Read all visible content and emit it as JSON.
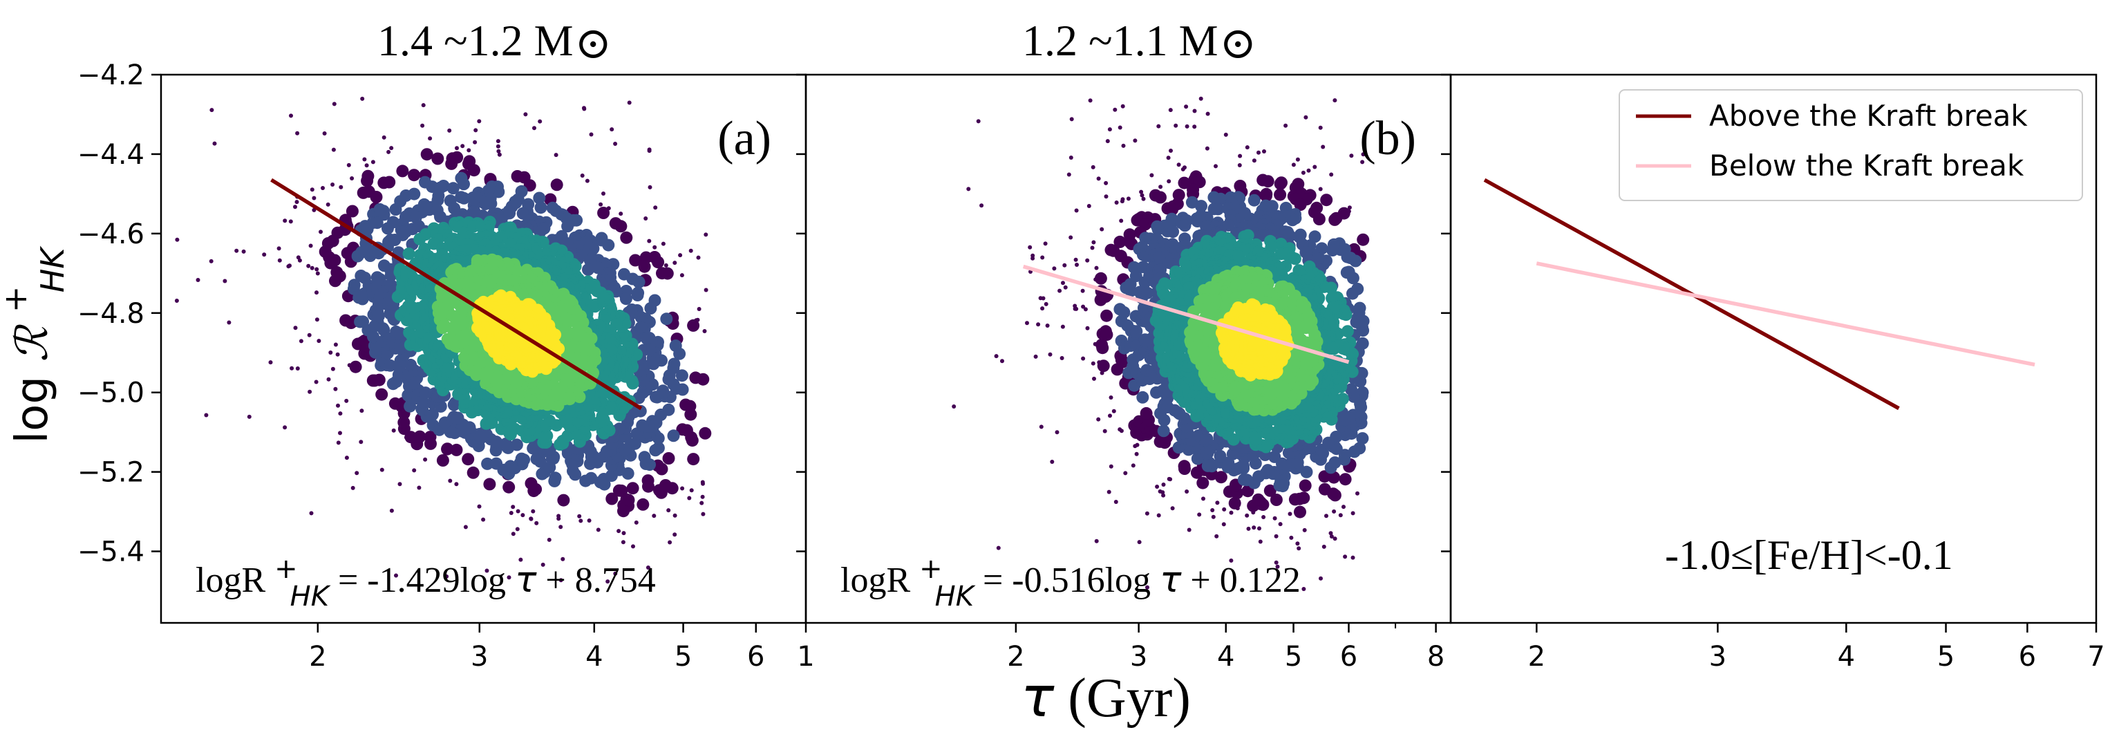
{
  "figure": {
    "xlabel_symbol": "τ",
    "xlabel_unit": "(Gyr)",
    "ylabel_prefix": "log ",
    "ylabel_symbol": "ℛ",
    "ylabel_sup": "+",
    "ylabel_sub": "HK"
  },
  "colors": {
    "above": "#800000",
    "below": "#ffc0cb",
    "cloud": [
      "#440154",
      "#3b528b",
      "#21918c",
      "#5ec962",
      "#fde725"
    ]
  },
  "chart_data": [
    {
      "type": "scatter",
      "title": "1.4 ~1.2 M",
      "title_symbol": "⊙",
      "panel_label": "(a)",
      "x_scale": "log",
      "xlim": [
        1.35,
        6.8
      ],
      "ylim": [
        -5.58,
        -4.2
      ],
      "x_ticks": [
        2,
        3,
        4,
        5,
        6
      ],
      "x_minor": [],
      "y_ticks": [
        -5.4,
        -5.2,
        -5.0,
        -4.8,
        -4.6,
        -4.4,
        -4.2
      ],
      "y_tick_labels": [
        "−5.4",
        "−5.2",
        "−5.0",
        "−4.8",
        "−4.6",
        "−4.4",
        "−4.2"
      ],
      "show_y_labels": true,
      "cloud": {
        "x_center": 3.3,
        "y_center": -4.85,
        "x_min": 1.4,
        "x_max": 5.3,
        "y_min": -5.5,
        "y_max": -4.26,
        "slope": -1.429
      },
      "fit": {
        "slope": -1.429,
        "intercept": 8.754,
        "x_range": [
          1.78,
          4.5
        ],
        "series": "above"
      },
      "equation": {
        "prefix": "logR",
        "sup": "+",
        "sub": "HK",
        "body": " = -1.429log",
        "tau": "τ",
        "tail": " + 8.754"
      }
    },
    {
      "type": "scatter",
      "title": "1.2 ~1.1 M",
      "title_symbol": "⊙",
      "panel_label": "(b)",
      "x_scale": "log",
      "xlim": [
        1,
        8.4
      ],
      "ylim": [
        -5.58,
        -4.2
      ],
      "x_ticks": [
        1,
        2,
        3,
        4,
        5,
        6,
        8
      ],
      "x_minor": [
        7
      ],
      "y_ticks": [
        -5.4,
        -5.2,
        -5.0,
        -4.8,
        -4.6,
        -4.4,
        -4.2
      ],
      "y_tick_labels": [
        "",
        "",
        "",
        "",
        "",
        "",
        ""
      ],
      "show_y_labels": false,
      "cloud": {
        "x_center": 4.4,
        "y_center": -4.87,
        "x_min": 1.5,
        "x_max": 6.3,
        "y_min": -5.5,
        "y_max": -4.26,
        "slope": -0.516
      },
      "fit": {
        "slope": -0.516,
        "intercept": 0.122,
        "x_range": [
          2.05,
          6.0
        ],
        "series": "below"
      },
      "equation": {
        "prefix": "logR",
        "sup": "+",
        "sub": "HK",
        "body": " = -0.516log",
        "tau": "τ",
        "tail": " + 0.122"
      }
    },
    {
      "type": "line",
      "title": "",
      "panel_label": "",
      "x_scale": "log",
      "xlim": [
        1.65,
        7.0
      ],
      "ylim": [
        -5.58,
        -4.2
      ],
      "x_ticks": [
        2,
        3,
        4,
        5,
        6,
        7
      ],
      "x_minor": [],
      "y_ticks": [
        -5.4,
        -5.2,
        -5.0,
        -4.8,
        -4.6,
        -4.4,
        -4.2
      ],
      "y_tick_labels": [
        "",
        "",
        "",
        "",
        "",
        "",
        ""
      ],
      "show_y_labels": false,
      "series": [
        {
          "name": "Above the Kraft break",
          "key": "above",
          "x": [
            1.78,
            4.5
          ],
          "y": [
            -4.465,
            -5.04
          ]
        },
        {
          "name": "Below the Kraft break",
          "key": "below",
          "x": [
            2.0,
            6.1
          ],
          "y": [
            -4.675,
            -4.93
          ]
        }
      ],
      "annotation": "-1.0≤[Fe/H]<-0.1",
      "legend_position": "top-right"
    }
  ]
}
